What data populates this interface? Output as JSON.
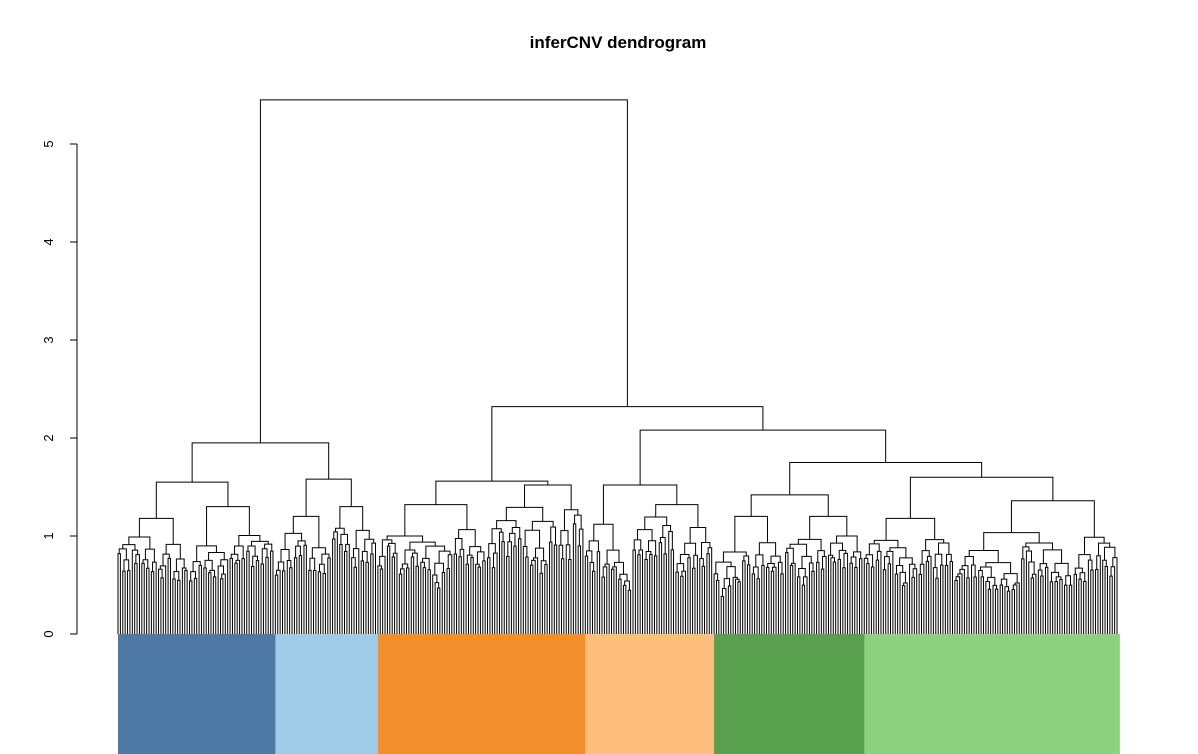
{
  "chart_data": {
    "type": "dendrogram",
    "title": "inferCNV dendrogram",
    "xlabel": "",
    "ylabel": "",
    "ylim": [
      0,
      5.45
    ],
    "y_ticks": [
      0,
      1,
      2,
      3,
      4,
      5
    ],
    "y_tick_labels": [
      "0",
      "1",
      "2",
      "3",
      "4",
      "5"
    ],
    "grid": false,
    "legend": "none",
    "leaf_count": 420,
    "root_height": 5.45,
    "tree": {
      "h": 5.45,
      "children": [
        {
          "h": 1.95,
          "children": [
            {
              "h": 1.55,
              "children": [
                {
                  "h": 1.18,
                  "leaves": 30,
                  "leaf_h": 0.65
                },
                {
                  "h": 1.3,
                  "leaves": 36,
                  "leaf_h": 0.62
                }
              ]
            },
            {
              "h": 1.58,
              "children": [
                {
                  "h": 1.2,
                  "leaves": 24,
                  "leaf_h": 0.7
                },
                {
                  "h": 1.3,
                  "leaves": 19,
                  "leaf_h": 0.72
                }
              ]
            }
          ]
        },
        {
          "h": 2.32,
          "children": [
            {
              "h": 1.56,
              "children": [
                {
                  "h": 1.32,
                  "leaves": 46,
                  "leaf_h": 0.66
                },
                {
                  "h": 1.52,
                  "leaves": 41,
                  "leaf_h": 0.65
                }
              ]
            },
            {
              "h": 2.08,
              "children": [
                {
                  "h": 1.52,
                  "children": [
                    {
                      "h": 1.12,
                      "leaves": 20,
                      "leaf_h": 0.7
                    },
                    {
                      "h": 1.32,
                      "leaves": 34,
                      "leaf_h": 0.66
                    }
                  ]
                },
                {
                  "h": 1.75,
                  "children": [
                    {
                      "h": 1.42,
                      "children": [
                        {
                          "h": 1.2,
                          "leaves": 30,
                          "leaf_h": 0.66
                        },
                        {
                          "h": 1.2,
                          "leaves": 33,
                          "leaf_h": 0.64
                        }
                      ]
                    },
                    {
                      "h": 1.6,
                      "children": [
                        {
                          "h": 1.18,
                          "leaves": 38,
                          "leaf_h": 0.63
                        },
                        {
                          "h": 1.36,
                          "leaves": 69,
                          "leaf_h": 0.64
                        }
                      ]
                    }
                  ]
                }
              ]
            }
          ]
        }
      ]
    },
    "color_bar": [
      {
        "leaves": 66,
        "color": "#4e79a7"
      },
      {
        "leaves": 43,
        "color": "#a0cbe8"
      },
      {
        "leaves": 87,
        "color": "#f28e2b"
      },
      {
        "leaves": 54,
        "color": "#ffbe7d"
      },
      {
        "leaves": 63,
        "color": "#59a14f"
      },
      {
        "leaves": 107,
        "color": "#8cd17d"
      }
    ]
  }
}
